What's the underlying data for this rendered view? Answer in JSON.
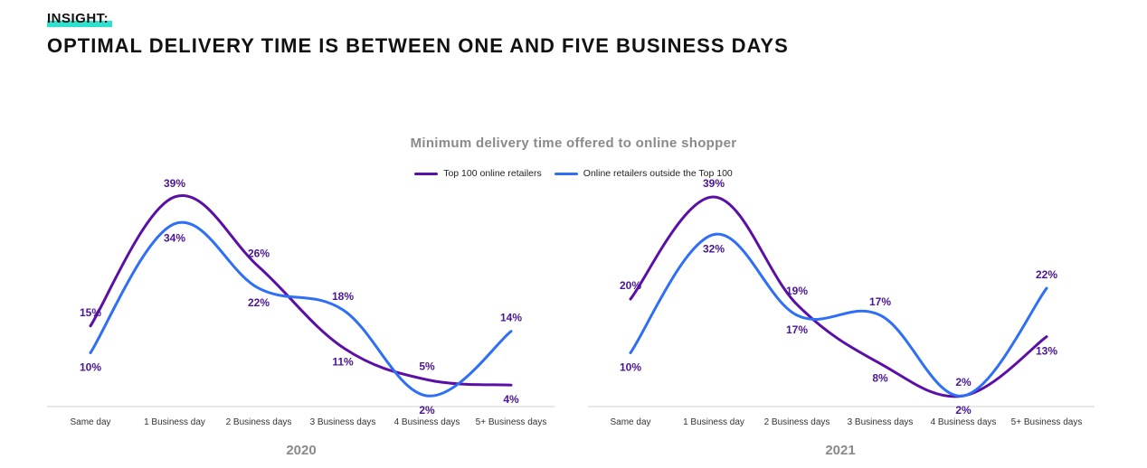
{
  "header": {
    "eyebrow": "INSIGHT:",
    "headline": "OPTIMAL DELIVERY TIME IS BETWEEN ONE AND FIVE BUSINESS DAYS"
  },
  "colors": {
    "top100": "#5a0fa6",
    "outside": "#2f6ff5",
    "highlight": "#2fe0cf",
    "axis": "#d0d0d0",
    "label": "#4a1596"
  },
  "chart_data": [
    {
      "type": "line",
      "title": "Minimum delivery time offered to online shopper",
      "year": "2020",
      "categories": [
        "Same day",
        "1 Business day",
        "2 Business days",
        "3 Business days",
        "4 Business days",
        "5+ Business days"
      ],
      "series": [
        {
          "name": "Top 100 online retailers",
          "values": [
            15,
            39,
            26,
            11,
            5,
            4
          ]
        },
        {
          "name": "Online retailers outside the Top 100",
          "values": [
            10,
            34,
            22,
            18,
            2,
            14
          ]
        }
      ],
      "ylim": [
        0,
        40
      ],
      "legend": "top-center",
      "grid": false
    },
    {
      "type": "line",
      "title": "Minimum delivery time offered to online shopper",
      "year": "2021",
      "categories": [
        "Same day",
        "1 Business day",
        "2 Business days",
        "3 Business days",
        "4 Business days",
        "5+ Business days"
      ],
      "series": [
        {
          "name": "Top 100 online retailers",
          "values": [
            20,
            39,
            19,
            8,
            2,
            13
          ]
        },
        {
          "name": "Online retailers outside the Top 100",
          "values": [
            10,
            32,
            17,
            17,
            2,
            22
          ]
        }
      ],
      "ylim": [
        0,
        40
      ],
      "legend": "top-center",
      "grid": false
    }
  ]
}
